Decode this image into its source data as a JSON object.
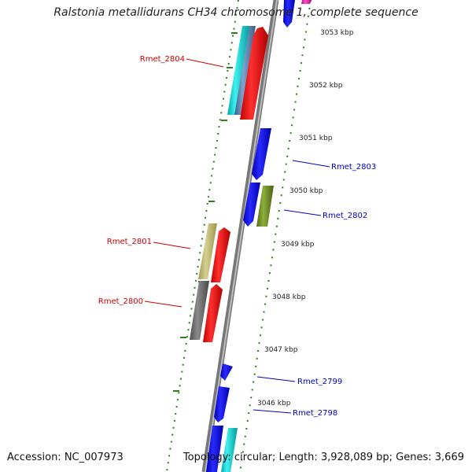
{
  "title": "Ralstonia metallidurans CH34 chromosome 1, complete sequence",
  "footer": {
    "accession": "Accession: NC_007973",
    "summary": "Topology: circular; Length: 3,928,089 bp; Genes: 3,669"
  },
  "colors": {
    "backbone": "#8c8c8c",
    "tick": "#2e7d1e",
    "forward_label": "#cc0000",
    "reverse_label": "#0000cc"
  },
  "axis_ticks": [
    {
      "label": "3053 kbp"
    },
    {
      "label": "3052 kbp"
    },
    {
      "label": "3051 kbp"
    },
    {
      "label": "3050 kbp"
    },
    {
      "label": "3049 kbp"
    },
    {
      "label": "3048 kbp"
    },
    {
      "label": "3047 kbp"
    },
    {
      "label": "3046 kbp"
    }
  ],
  "gene_labels": [
    {
      "name": "Rmet_2804",
      "strand": "forward"
    },
    {
      "name": "Rmet_2803",
      "strand": "reverse"
    },
    {
      "name": "Rmet_2802",
      "strand": "reverse"
    },
    {
      "name": "Rmet_2801",
      "strand": "forward"
    },
    {
      "name": "Rmet_2800",
      "strand": "forward"
    },
    {
      "name": "Rmet_2799",
      "strand": "reverse"
    },
    {
      "name": "Rmet_2798",
      "strand": "reverse"
    }
  ],
  "features": [
    {
      "name": "feature-cyan",
      "color": "#00cccc"
    },
    {
      "name": "feature-steel",
      "color": "#5a7fa8"
    },
    {
      "name": "feature-red",
      "color": "#ee0000"
    },
    {
      "name": "feature-blue",
      "color": "#0000ee"
    },
    {
      "name": "feature-olive",
      "color": "#6b8e23"
    },
    {
      "name": "feature-khaki",
      "color": "#bdb76b"
    },
    {
      "name": "feature-gray",
      "color": "#696969"
    },
    {
      "name": "feature-magenta",
      "color": "#e020a0"
    }
  ]
}
